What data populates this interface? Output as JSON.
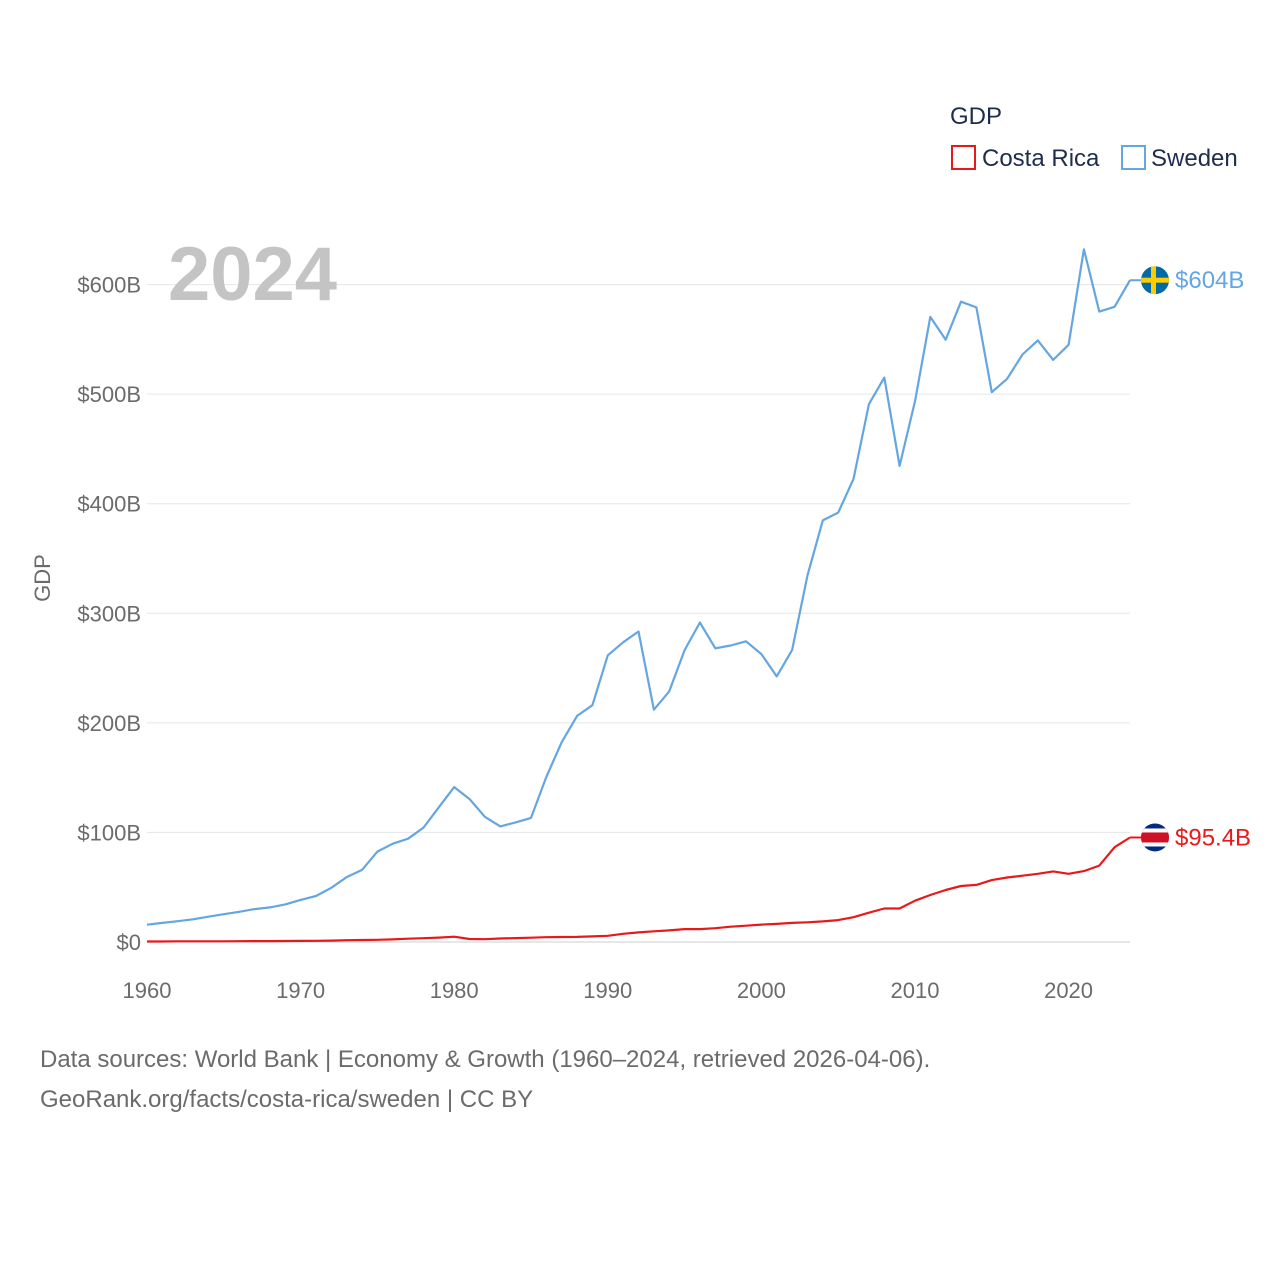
{
  "chart_data": {
    "type": "line",
    "title": "",
    "current_year_label": "2024",
    "xlabel": "",
    "ylabel": "GDP",
    "xlim": [
      1960,
      2024
    ],
    "ylim": [
      0,
      640
    ],
    "x_ticks": [
      1960,
      1970,
      1980,
      1990,
      2000,
      2010,
      2020
    ],
    "y_ticks": [
      0,
      100,
      200,
      300,
      400,
      500,
      600
    ],
    "y_tick_labels": [
      "$0",
      "$100B",
      "$200B",
      "$300B",
      "$400B",
      "$500B",
      "$600B"
    ],
    "grid": true,
    "legend": {
      "title": "GDP",
      "position": "top-right",
      "entries": [
        "Costa Rica",
        "Sweden"
      ]
    },
    "x": [
      1960,
      1961,
      1962,
      1963,
      1964,
      1965,
      1966,
      1967,
      1968,
      1969,
      1970,
      1971,
      1972,
      1973,
      1974,
      1975,
      1976,
      1977,
      1978,
      1979,
      1980,
      1981,
      1982,
      1983,
      1984,
      1985,
      1986,
      1987,
      1988,
      1989,
      1990,
      1991,
      1992,
      1993,
      1994,
      1995,
      1996,
      1997,
      1998,
      1999,
      2000,
      2001,
      2002,
      2003,
      2004,
      2005,
      2006,
      2007,
      2008,
      2009,
      2010,
      2011,
      2012,
      2013,
      2014,
      2015,
      2016,
      2017,
      2018,
      2019,
      2020,
      2021,
      2022,
      2023,
      2024
    ],
    "series": [
      {
        "name": "Costa Rica",
        "color": "#e8191b",
        "end_label": "$95.4B",
        "values": [
          0.5,
          0.5,
          0.6,
          0.6,
          0.6,
          0.6,
          0.7,
          0.8,
          0.8,
          0.9,
          1.0,
          1.1,
          1.3,
          1.6,
          1.8,
          2.0,
          2.4,
          3.0,
          3.5,
          4.0,
          4.8,
          2.7,
          2.6,
          3.2,
          3.6,
          3.9,
          4.4,
          4.6,
          4.7,
          5.1,
          5.7,
          7.5,
          8.8,
          9.8,
          10.6,
          11.8,
          11.8,
          12.6,
          14.0,
          14.9,
          15.9,
          16.5,
          17.4,
          18.0,
          18.8,
          20.0,
          22.6,
          26.7,
          30.6,
          30.6,
          37.7,
          42.9,
          47.5,
          51.1,
          52.1,
          56.5,
          58.9,
          60.5,
          62.2,
          64.4,
          62.2,
          64.7,
          69.7,
          86.5,
          95.4
        ]
      },
      {
        "name": "Sweden",
        "color": "#64a6e1",
        "end_label": "$604B",
        "values": [
          15.8,
          17.4,
          19.0,
          20.7,
          23.1,
          25.4,
          27.6,
          30.0,
          31.6,
          34.3,
          38.4,
          42.0,
          49.5,
          59.2,
          65.8,
          82.5,
          89.7,
          94.3,
          104.4,
          122.9,
          141.4,
          130.5,
          114.3,
          105.5,
          109.2,
          113.3,
          150.6,
          182.4,
          206.4,
          216.1,
          261.7,
          273.5,
          283.4,
          212.0,
          228.7,
          266.4,
          291.6,
          268.1,
          270.6,
          274.4,
          262.8,
          242.4,
          266.4,
          334.7,
          384.8,
          391.9,
          422.6,
          490.8,
          515.1,
          434.5,
          493.5,
          570.5,
          549.7,
          584.4,
          579.2,
          501.8,
          514.0,
          536.2,
          549.1,
          531.3,
          545.1,
          632.2,
          575.4,
          579.7,
          604.0
        ]
      }
    ]
  },
  "flags": {
    "costa_rica": {
      "colors": [
        "#002b7f",
        "#ffffff",
        "#ce1126"
      ]
    },
    "sweden": {
      "colors": [
        "#006aa7",
        "#fecc00"
      ]
    }
  },
  "footer": {
    "line1": "Data sources: World Bank | Economy & Growth (1960–2024, retrieved 2026-04-06).",
    "line2": "GeoRank.org/facts/costa-rica/sweden | CC BY"
  }
}
